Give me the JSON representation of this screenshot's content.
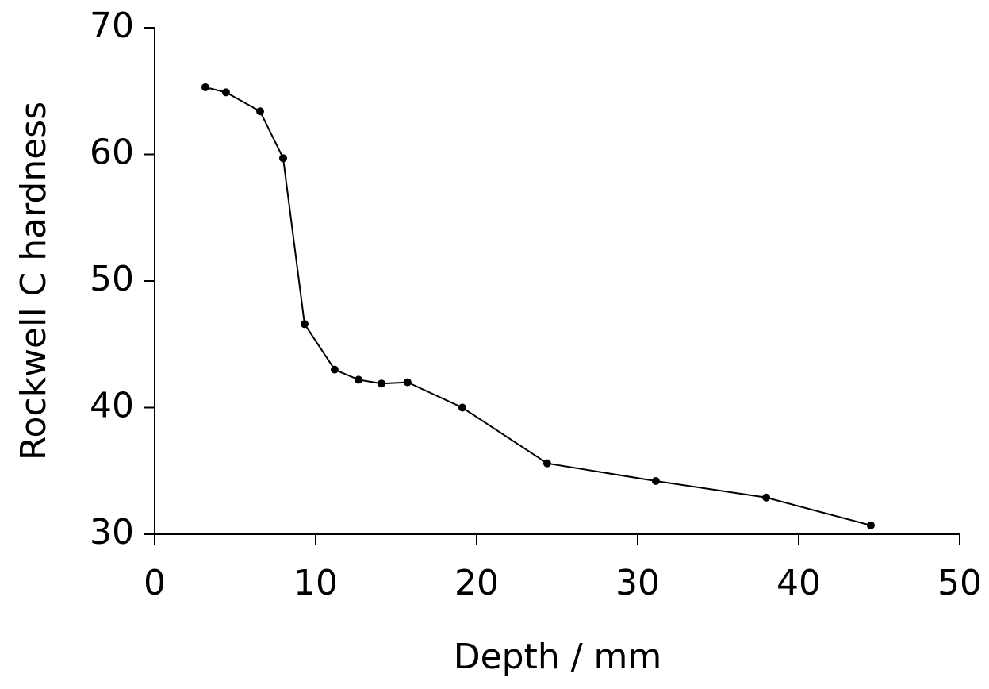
{
  "chart_data": {
    "type": "line",
    "x_label": "Depth / mm",
    "y_label": "Rockwell C hardness",
    "x": [
      3.15,
      4.43,
      6.55,
      7.98,
      9.31,
      11.18,
      12.66,
      14.09,
      15.71,
      19.11,
      24.38,
      31.13,
      37.98,
      44.48
    ],
    "values": [
      65.3,
      64.9,
      63.4,
      59.7,
      46.6,
      43.0,
      42.2,
      41.9,
      42.0,
      40.0,
      35.6,
      34.2,
      32.9,
      30.7
    ],
    "color": "#000000",
    "xlim": [
      0,
      50
    ],
    "xticks": [
      0,
      10,
      20,
      30,
      40,
      50
    ],
    "ylim": [
      30,
      70
    ],
    "yticks": [
      30,
      40,
      50,
      60,
      70
    ],
    "grid": false
  }
}
